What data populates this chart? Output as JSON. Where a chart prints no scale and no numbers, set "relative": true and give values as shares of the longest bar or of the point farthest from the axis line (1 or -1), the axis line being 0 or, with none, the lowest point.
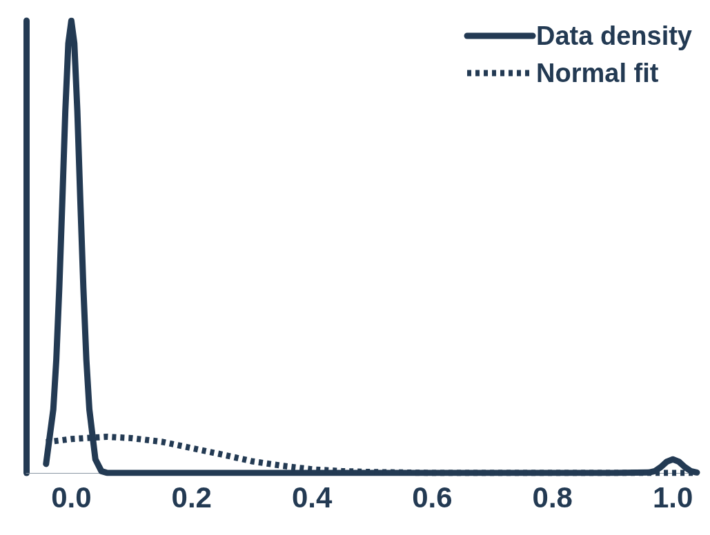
{
  "chart_data": {
    "type": "line",
    "relative": true,
    "xlim": [
      -0.075,
      1.04
    ],
    "xticks": [
      {
        "value": 0,
        "label": "0.0"
      },
      0.2,
      0.4,
      0.6,
      0.8,
      {
        "value": 1,
        "label": "1.0"
      }
    ],
    "tick_labels": "x",
    "grid": false,
    "legend": "top right",
    "marker": "none",
    "series": [
      {
        "name": "Data density",
        "color": "#233a53",
        "line_style": "solid",
        "x": [
          -0.042,
          -0.03,
          -0.025,
          -0.02,
          -0.015,
          -0.01,
          -0.005,
          0,
          0.005,
          0.01,
          0.015,
          0.02,
          0.025,
          0.03,
          0.04,
          0.05,
          0.06,
          0.2,
          0.5,
          0.9,
          0.96,
          0.97,
          0.98,
          0.99,
          1,
          1.01,
          1.02,
          1.03,
          1.04
        ],
        "values": [
          0.02,
          0.14,
          0.25,
          0.41,
          0.6,
          0.8,
          0.95,
          1,
          0.95,
          0.8,
          0.6,
          0.41,
          0.25,
          0.14,
          0.03,
          0.004,
          0,
          0,
          0,
          0,
          0.001,
          0.004,
          0.013,
          0.025,
          0.03,
          0.025,
          0.013,
          0.004,
          0.001
        ]
      },
      {
        "name": "Normal fit",
        "color": "#233a53",
        "line_style": "dotted",
        "x": [
          -0.042,
          0,
          0.06,
          0.1,
          0.15,
          0.2,
          0.25,
          0.3,
          0.35,
          0.4,
          0.45,
          0.5,
          0.6,
          0.8,
          1.04
        ],
        "values": [
          0.068,
          0.075,
          0.08,
          0.077,
          0.069,
          0.055,
          0.041,
          0.026,
          0.016,
          0.008,
          0.004,
          0.002,
          0,
          0,
          0
        ]
      }
    ]
  }
}
